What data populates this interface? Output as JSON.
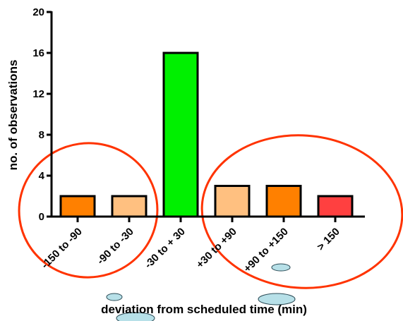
{
  "chart_data": {
    "type": "bar",
    "title": "",
    "xlabel": "deviation from scheduled time (min)",
    "ylabel": "no. of observations",
    "ylim": [
      0,
      20
    ],
    "yticks": [
      0,
      4,
      8,
      12,
      16,
      20
    ],
    "grid": false,
    "legend": "none",
    "categories": [
      "-150 to -90",
      "-90 to -30",
      "-30 to + 30",
      "+30 to +90",
      "+90 to +150",
      "> 150"
    ],
    "values": [
      2,
      2,
      16,
      3,
      3,
      2
    ],
    "bar_colors": [
      "#ff8000",
      "#ffc080",
      "#00f000",
      "#ffc080",
      "#ff8000",
      "#ff4040"
    ],
    "annotations": {
      "circle_color": "#ff3300",
      "ellipse_fill": "#b7e0e8",
      "ellipse_stroke": "#2a4a55"
    }
  }
}
